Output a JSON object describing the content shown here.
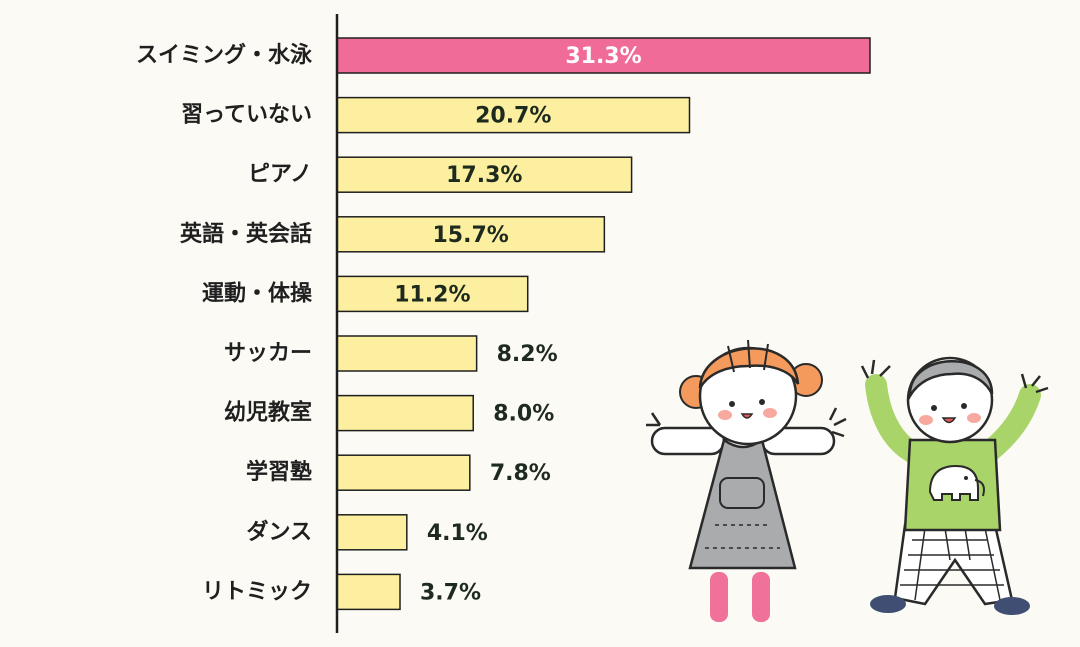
{
  "chart_data": {
    "type": "bar",
    "orientation": "horizontal",
    "categories": [
      "スイミング・水泳",
      "習っていない",
      "ピアノ",
      "英語・英会話",
      "運動・体操",
      "サッカー",
      "幼児教室",
      "学習塾",
      "ダンス",
      "リトミック"
    ],
    "values": [
      31.3,
      20.7,
      17.3,
      15.7,
      11.2,
      8.2,
      8.0,
      7.8,
      4.1,
      3.7
    ],
    "value_labels": [
      "31.3%",
      "20.7%",
      "17.3%",
      "15.7%",
      "11.2%",
      "8.2%",
      "8.0%",
      "7.8%",
      "4.1%",
      "3.7%"
    ],
    "title": "",
    "xlabel": "",
    "ylabel": "",
    "xlim": [
      0,
      38
    ],
    "grid": false,
    "legend": "none",
    "colors": {
      "highlight": "#f06b98",
      "bar": "#fcf0a0",
      "bar_stroke": "#1f1f1f",
      "axis": "#1f1f1f",
      "label_on_highlight": "#ffffff",
      "label": "#1f2a1f",
      "background": "#fbfaf4"
    }
  },
  "illustration": {
    "icons": [
      "girl-illustration-icon",
      "boy-illustration-icon"
    ]
  }
}
